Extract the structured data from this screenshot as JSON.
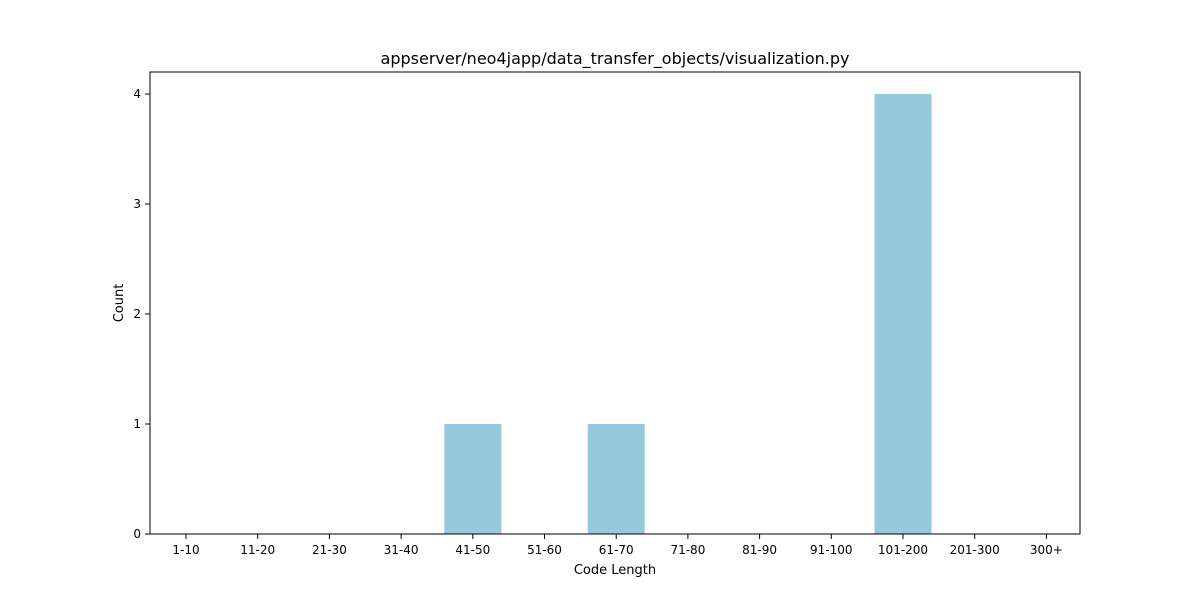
{
  "chart_data": {
    "type": "bar",
    "title": "appserver/neo4japp/data_transfer_objects/visualization.py",
    "xlabel": "Code Length",
    "ylabel": "Count",
    "categories": [
      "1-10",
      "11-20",
      "21-30",
      "31-40",
      "41-50",
      "51-60",
      "61-70",
      "71-80",
      "81-90",
      "91-100",
      "101-200",
      "201-300",
      "300+"
    ],
    "values": [
      0,
      0,
      0,
      0,
      1,
      0,
      1,
      0,
      0,
      0,
      4,
      0,
      0
    ],
    "ylim": [
      0,
      4.2
    ],
    "yticks": [
      0,
      1,
      2,
      3,
      4
    ],
    "bar_color": "#96c9dc",
    "grid": false,
    "legend": "none"
  }
}
